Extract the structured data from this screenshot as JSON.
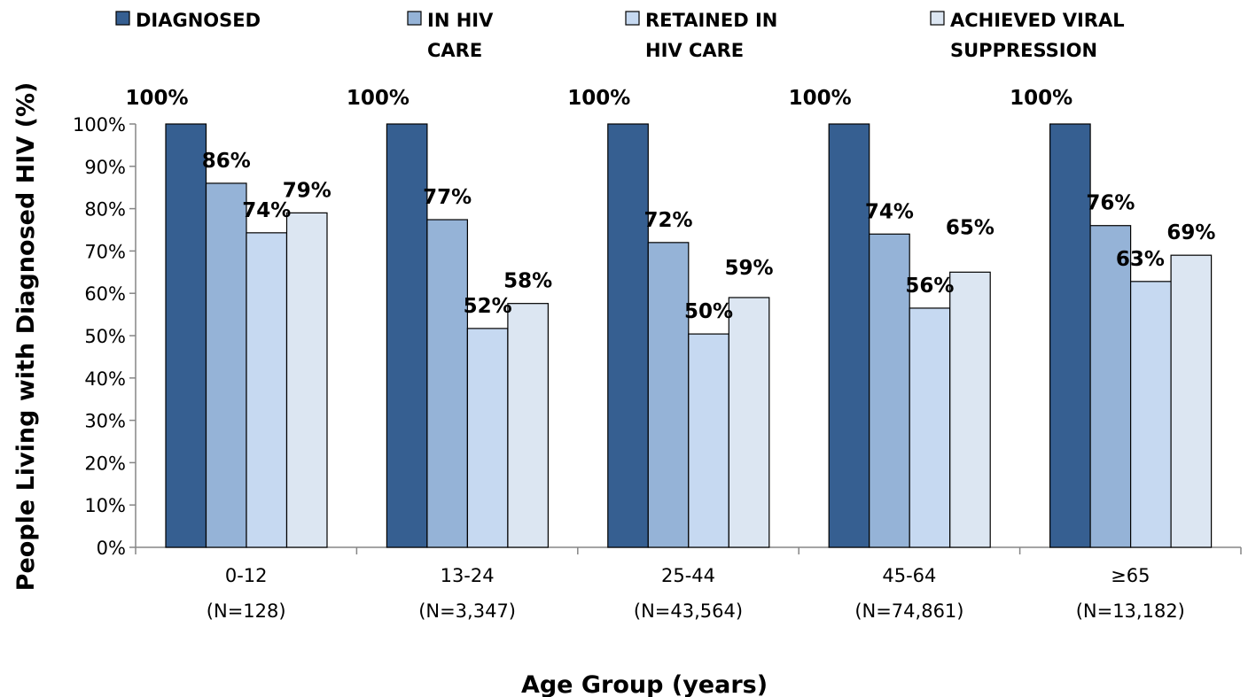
{
  "chart_data": {
    "type": "bar",
    "title": "",
    "xlabel": "Age Group (years)",
    "ylabel": "People Living with Diagnosed HIV (%)",
    "ylim": [
      0,
      100
    ],
    "yticks": [
      "0%",
      "10%",
      "20%",
      "30%",
      "40%",
      "50%",
      "60%",
      "70%",
      "80%",
      "90%",
      "100%"
    ],
    "categories": [
      {
        "name": "0-12",
        "n": "(N=128)"
      },
      {
        "name": "13-24",
        "n": "(N=3,347)"
      },
      {
        "name": "25-44",
        "n": "(N=43,564)"
      },
      {
        "name": "45-64",
        "n": "(N=74,861)"
      },
      {
        "name": "≥65",
        "n": "(N=13,182)"
      }
    ],
    "series": [
      {
        "name": "DIAGNOSED",
        "legend_lines": [
          "DIAGNOSED"
        ],
        "color": "#365F91",
        "values": [
          100,
          100,
          100,
          100,
          100
        ],
        "labels": [
          "100%",
          "100%",
          "100%",
          "100%",
          "100%"
        ]
      },
      {
        "name": "IN HIV CARE",
        "legend_lines": [
          "IN HIV",
          "CARE"
        ],
        "color": "#95B3D7",
        "values": [
          86,
          77.4,
          72,
          74,
          76
        ],
        "labels": [
          "86%",
          "77%",
          "72%",
          "74%",
          "76%"
        ]
      },
      {
        "name": "RETAINED IN HIV CARE",
        "legend_lines": [
          "RETAINED IN",
          "HIV CARE"
        ],
        "color": "#C6D9F1",
        "values": [
          74.3,
          51.7,
          50.4,
          56.5,
          62.8
        ],
        "labels": [
          "74%",
          "52%",
          "50%",
          "56%",
          "63%"
        ]
      },
      {
        "name": "ACHIEVED VIRAL SUPPRESSION",
        "legend_lines": [
          "ACHIEVED VIRAL",
          "SUPPRESSION"
        ],
        "color": "#DCE6F2",
        "values": [
          79,
          57.6,
          59,
          65,
          69
        ],
        "labels": [
          "79%",
          "58%",
          "59%",
          "65%",
          "69%"
        ]
      }
    ],
    "legend_position": "top",
    "grid": false
  }
}
